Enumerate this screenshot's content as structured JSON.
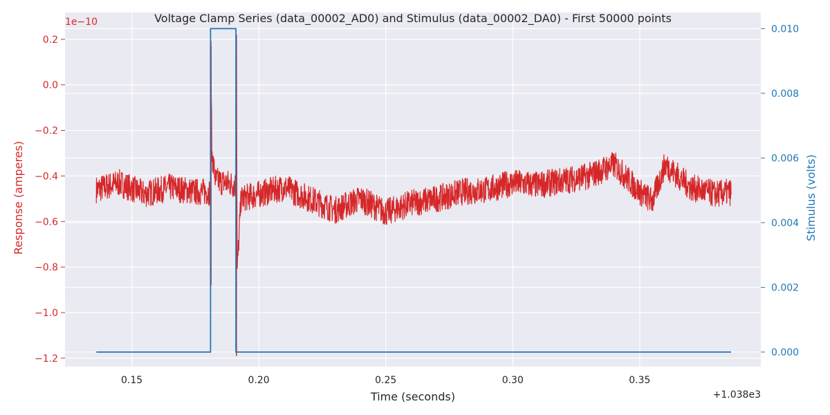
{
  "chart_data": {
    "type": "line",
    "title": "Voltage Clamp Series (data_00002_AD0) and Stimulus (data_00002_DA0) - First 50000 points",
    "xlabel": "Time (seconds)",
    "x_offset_label": "+1.038e3",
    "x_ticks": [
      "0.15",
      "0.20",
      "0.25",
      "0.30",
      "0.35"
    ],
    "x_tick_values": [
      1038.15,
      1038.2,
      1038.25,
      1038.3,
      1038.35
    ],
    "xlim": [
      1038.1237,
      1038.3977
    ],
    "y_left": {
      "label": "Response (amperes)",
      "multiplier_label": "1e−10",
      "ticks": [
        "0.2",
        "0.0",
        "−0.2",
        "−0.4",
        "−0.6",
        "−0.8",
        "−1.0",
        "−1.2"
      ],
      "tick_values": [
        0.2,
        0.0,
        -0.2,
        -0.4,
        -0.6,
        -0.8,
        -1.0,
        -1.2
      ],
      "ylim": [
        -1.237,
        0.318
      ],
      "color": "#d62728"
    },
    "y_right": {
      "label": "Stimulus (volts)",
      "ticks": [
        "0.000",
        "0.002",
        "0.004",
        "0.006",
        "0.008",
        "0.010"
      ],
      "tick_values": [
        0.0,
        0.002,
        0.004,
        0.006,
        0.008,
        0.01
      ],
      "ylim": [
        -0.00045,
        0.0105
      ],
      "color": "#1f77b4"
    },
    "grid": true,
    "series": [
      {
        "name": "data_00002_AD0",
        "axis": "left",
        "color": "#d62728",
        "x": [
          1038.136,
          1038.145,
          1038.155,
          1038.165,
          1038.175,
          1038.181,
          1038.1812,
          1038.1815,
          1038.183,
          1038.187,
          1038.191,
          1038.1912,
          1038.1915,
          1038.193,
          1038.2,
          1038.21,
          1038.22,
          1038.23,
          1038.24,
          1038.25,
          1038.26,
          1038.27,
          1038.28,
          1038.29,
          1038.3,
          1038.31,
          1038.32,
          1038.33,
          1038.34,
          1038.35,
          1038.355,
          1038.36,
          1038.365,
          1038.37,
          1038.38,
          1038.386
        ],
        "y": [
          -0.46,
          -0.43,
          -0.48,
          -0.45,
          -0.47,
          -0.47,
          0.17,
          -0.3,
          -0.42,
          -0.43,
          -0.44,
          0.22,
          -0.82,
          -0.5,
          -0.48,
          -0.45,
          -0.5,
          -0.55,
          -0.5,
          -0.56,
          -0.52,
          -0.5,
          -0.47,
          -0.46,
          -0.43,
          -0.44,
          -0.42,
          -0.4,
          -0.35,
          -0.47,
          -0.51,
          -0.35,
          -0.4,
          -0.45,
          -0.48,
          -0.47
        ],
        "noise_amplitude": 0.06,
        "extremes": {
          "min": -1.19,
          "max": 0.22
        }
      },
      {
        "name": "data_00002_DA0",
        "axis": "right",
        "color": "#1f77b4",
        "x": [
          1038.136,
          1038.181,
          1038.181,
          1038.191,
          1038.191,
          1038.386
        ],
        "y": [
          0.0,
          0.0,
          0.01,
          0.01,
          0.0,
          0.0
        ]
      }
    ]
  }
}
